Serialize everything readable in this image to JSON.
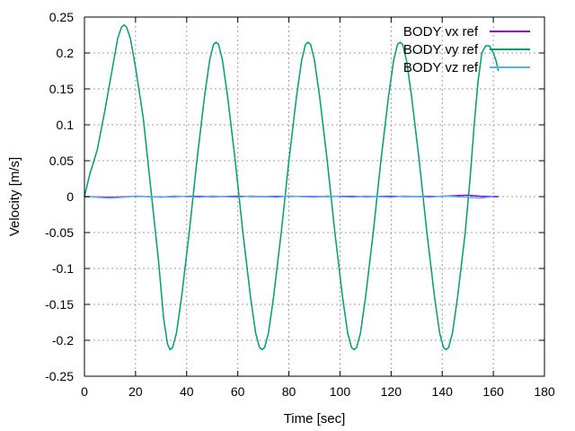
{
  "chart_data": {
    "type": "line",
    "title": "",
    "xlabel": "Time [sec]",
    "ylabel": "Velocity [m/s]",
    "xlim": [
      0,
      180
    ],
    "ylim": [
      -0.25,
      0.25
    ],
    "xticks": [
      0,
      20,
      40,
      60,
      80,
      100,
      120,
      140,
      160,
      180
    ],
    "xtick_labels": [
      "0",
      "20",
      "40",
      "60",
      "80",
      "100",
      "120",
      "140",
      "160",
      "180"
    ],
    "yticks": [
      0.25,
      0.2,
      0.15,
      0.1,
      0.05,
      0,
      -0.05,
      -0.1,
      -0.15,
      -0.2,
      -0.25
    ],
    "ytick_labels": [
      "0.25",
      "0.2",
      "0.15",
      "0.1",
      "0.05",
      "0",
      "-0.05",
      "-0.1",
      "-0.15",
      "-0.2",
      "-0.25"
    ],
    "grid": true,
    "legend_position": "top-right",
    "series": [
      {
        "name": "BODY vx ref",
        "color": "#9400d3",
        "x": [
          0,
          10,
          20,
          30,
          40,
          50,
          60,
          70,
          80,
          90,
          100,
          110,
          120,
          130,
          140,
          150,
          155,
          162
        ],
        "y": [
          0,
          -0.001,
          0.0005,
          -0.0005,
          0.0005,
          0,
          0.0005,
          0,
          0.0005,
          0,
          0.0005,
          0,
          0.0005,
          0,
          0.0005,
          0.002,
          0.0005,
          0
        ]
      },
      {
        "name": "BODY vy ref",
        "color": "#009e73",
        "x": [
          0,
          2,
          5,
          8,
          11,
          13,
          14.5,
          15.5,
          16.5,
          18,
          20,
          23,
          26,
          29,
          31,
          32.5,
          33.5,
          34.5,
          36,
          38,
          41,
          44,
          47,
          49,
          50.5,
          51.5,
          52.5,
          54,
          56,
          59,
          62,
          65,
          67,
          68.5,
          69.5,
          70.5,
          72,
          74,
          77,
          80,
          83,
          85,
          86.5,
          87.5,
          88.5,
          90,
          92,
          95,
          98,
          101,
          103,
          104.5,
          105.5,
          106.5,
          108,
          110,
          113,
          116,
          119,
          121,
          122.5,
          123.5,
          124.5,
          126,
          128,
          131,
          134,
          137,
          139,
          140.5,
          141.5,
          142.5,
          144,
          146,
          149,
          151,
          152.5,
          154,
          155.5,
          157,
          158.5,
          160,
          161,
          162
        ],
        "y": [
          0,
          0.03,
          0.065,
          0.12,
          0.18,
          0.22,
          0.236,
          0.239,
          0.236,
          0.22,
          0.18,
          0.11,
          0.01,
          -0.09,
          -0.17,
          -0.205,
          -0.213,
          -0.21,
          -0.19,
          -0.14,
          -0.05,
          0.05,
          0.14,
          0.19,
          0.212,
          0.215,
          0.212,
          0.19,
          0.14,
          0.05,
          -0.05,
          -0.14,
          -0.19,
          -0.21,
          -0.213,
          -0.21,
          -0.19,
          -0.14,
          -0.05,
          0.05,
          0.14,
          0.19,
          0.212,
          0.215,
          0.212,
          0.19,
          0.14,
          0.05,
          -0.05,
          -0.14,
          -0.19,
          -0.21,
          -0.213,
          -0.21,
          -0.19,
          -0.14,
          -0.05,
          0.05,
          0.14,
          0.19,
          0.212,
          0.215,
          0.212,
          0.19,
          0.14,
          0.05,
          -0.05,
          -0.14,
          -0.19,
          -0.21,
          -0.213,
          -0.21,
          -0.19,
          -0.14,
          -0.05,
          0.03,
          0.1,
          0.16,
          0.2,
          0.21,
          0.21,
          0.2,
          0.19,
          0.175
        ]
      },
      {
        "name": "BODY vz ref",
        "color": "#56b4e9",
        "x": [
          0,
          5,
          10,
          15,
          20,
          25,
          30,
          35,
          40,
          45,
          50,
          55,
          60,
          65,
          70,
          75,
          80,
          85,
          90,
          95,
          100,
          105,
          110,
          115,
          120,
          125,
          130,
          135,
          140,
          145,
          150,
          155,
          160
        ],
        "y": [
          0,
          -0.001,
          -0.002,
          -0.001,
          0.001,
          0,
          -0.001,
          0.001,
          0,
          -0.001,
          0.001,
          0,
          -0.001,
          0.001,
          0,
          -0.001,
          0.001,
          0,
          -0.001,
          0.001,
          0,
          -0.001,
          0.001,
          0,
          -0.001,
          0.001,
          0,
          -0.001,
          0.001,
          0,
          -0.001,
          -0.002,
          0
        ]
      }
    ]
  }
}
